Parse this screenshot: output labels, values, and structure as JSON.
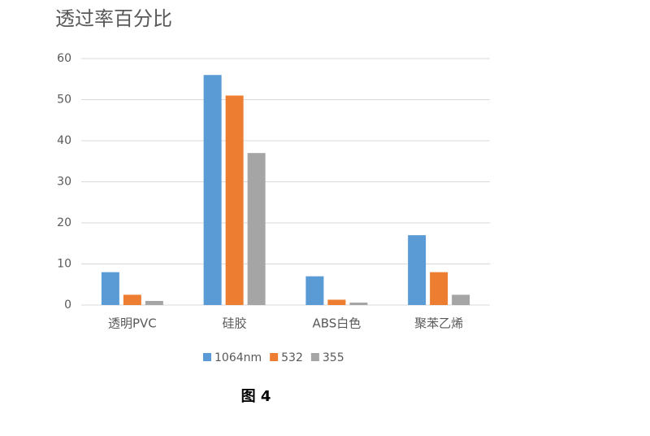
{
  "chart_data": {
    "type": "bar",
    "title": "透过率百分比",
    "categories": [
      "透明PVC",
      "硅胶",
      "ABS白色",
      "聚苯乙烯"
    ],
    "series": [
      {
        "name": "1064nm",
        "color": "#5b9bd5",
        "values": [
          8,
          56,
          7,
          17
        ]
      },
      {
        "name": "532",
        "color": "#ed7d31",
        "values": [
          2.5,
          51,
          1.3,
          8
        ]
      },
      {
        "name": "355",
        "color": "#a5a5a5",
        "values": [
          1,
          37,
          0.6,
          2.5
        ]
      }
    ],
    "ylim": [
      0,
      60
    ],
    "yticks": [
      0,
      10,
      20,
      30,
      40,
      50,
      60
    ],
    "grid": true,
    "legend": "bottom"
  },
  "caption": "图 4"
}
